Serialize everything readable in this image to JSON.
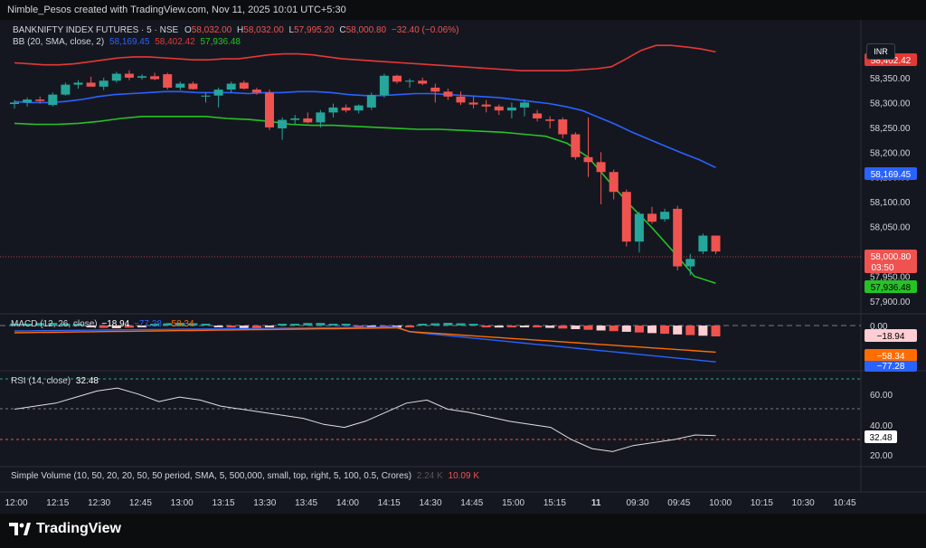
{
  "top_caption": "Nimble_Pesos created with TradingView.com, Nov 11, 2025 10:01 UTC+5:30",
  "currency_button": "INR",
  "symbol": {
    "title": "BANKNIFTY INDEX FUTURES · 5 · NSE",
    "o_label": "O",
    "open": "58,032.00",
    "h_label": "H",
    "high": "58,032.00",
    "l_label": "L",
    "low": "57,995.20",
    "c_label": "C",
    "close": "58,000.80",
    "change": "−32.40 (−0.06%)"
  },
  "bb": {
    "label": "BB (20, SMA, close, 2)",
    "basis": "58,169.45",
    "upper": "58,402.42",
    "lower": "57,936.48"
  },
  "macd": {
    "label": "MACD (12, 26, close)",
    "hist": "−18.94",
    "v2": "−77.28",
    "v3": "−58.34"
  },
  "rsi": {
    "label": "RSI (14, close)",
    "value": "32.48"
  },
  "volume": {
    "label": "Simple Volume (10, 50, 20, 20, 50, 50 period, SMA, 5, 500,000, small, top, right, 5, 100, 0.5, Crores)",
    "v1": "2.24 K",
    "v2": "10.09 K"
  },
  "price_axis": [
    "58,350.00",
    "58,300.00",
    "58,250.00",
    "58,200.00",
    "58,150.00",
    "58,100.00",
    "58,050.00",
    "57,950.00",
    "57,900.00"
  ],
  "price_badges": {
    "upper": "58,402.42",
    "basis": "58,169.45",
    "close": "58,000.80",
    "countdown": "03:50",
    "lower": "57,936.48"
  },
  "macd_axis": {
    "zero": "0.00",
    "hist": "−18.94",
    "signal": "−58.34",
    "macd": "−77.28"
  },
  "rsi_axis": {
    "top": "60.00",
    "mid": "40.00",
    "bottom": "20.00",
    "current": "32.48"
  },
  "time_axis": [
    "12:00",
    "12:15",
    "12:30",
    "12:45",
    "13:00",
    "13:15",
    "13:30",
    "13:45",
    "14:00",
    "14:15",
    "14:30",
    "14:45",
    "15:00",
    "15:15",
    "11",
    "09:30",
    "09:45",
    "10:00",
    "10:15",
    "10:30",
    "10:45"
  ],
  "brand": "TradingView",
  "colors": {
    "up": "#26a69a",
    "down": "#ef5350",
    "bb_upper": "#e53935",
    "bb_basis": "#2962ff",
    "bb_lower": "#26c226",
    "macd": "#2962ff",
    "signal": "#ff6d00",
    "rsi": "#e0e0e0"
  },
  "chart_data": {
    "type": "candlestick",
    "interval": "5",
    "y_range": [
      57880,
      58430
    ],
    "candles": [
      [
        58297,
        58305,
        58288,
        58300
      ],
      [
        58300,
        58310,
        58292,
        58306
      ],
      [
        58306,
        58312,
        58298,
        58303
      ],
      [
        58295,
        58320,
        58292,
        58316
      ],
      [
        58316,
        58340,
        58314,
        58336
      ],
      [
        58336,
        58345,
        58328,
        58340
      ],
      [
        58340,
        58352,
        58333,
        58332
      ],
      [
        58332,
        58350,
        58325,
        58344
      ],
      [
        58344,
        58362,
        58340,
        58358
      ],
      [
        58358,
        58365,
        58345,
        58350
      ],
      [
        58350,
        58357,
        58346,
        58353
      ],
      [
        58353,
        58360,
        58345,
        58347
      ],
      [
        58357,
        58360,
        58326,
        58330
      ],
      [
        58330,
        58342,
        58325,
        58338
      ],
      [
        58338,
        58342,
        58326,
        58327
      ],
      [
        58312,
        58320,
        58300,
        58314
      ],
      [
        58314,
        58330,
        58290,
        58326
      ],
      [
        58326,
        58342,
        58320,
        58338
      ],
      [
        58340,
        58344,
        58326,
        58328
      ],
      [
        58326,
        58330,
        58316,
        58320
      ],
      [
        58320,
        58326,
        58245,
        58250
      ],
      [
        58248,
        58270,
        58225,
        58265
      ],
      [
        58265,
        58275,
        58255,
        58268
      ],
      [
        58268,
        58280,
        58258,
        58260
      ],
      [
        58260,
        58285,
        58250,
        58280
      ],
      [
        58280,
        58298,
        58270,
        58290
      ],
      [
        58290,
        58296,
        58280,
        58284
      ],
      [
        58284,
        58296,
        58278,
        58294
      ],
      [
        58290,
        58320,
        58285,
        58315
      ],
      [
        58315,
        58358,
        58310,
        58354
      ],
      [
        58354,
        58356,
        58338,
        58342
      ],
      [
        58342,
        58348,
        58330,
        58344
      ],
      [
        58344,
        58350,
        58335,
        58338
      ],
      [
        58330,
        58338,
        58300,
        58322
      ],
      [
        58322,
        58328,
        58305,
        58312
      ],
      [
        58312,
        58322,
        58295,
        58300
      ],
      [
        58300,
        58312,
        58288,
        58296
      ],
      [
        58296,
        58305,
        58280,
        58292
      ],
      [
        58292,
        58296,
        58275,
        58284
      ],
      [
        58284,
        58300,
        58268,
        58290
      ],
      [
        58290,
        58306,
        58272,
        58300
      ],
      [
        58278,
        58285,
        58262,
        58268
      ],
      [
        58266,
        58272,
        58248,
        58263
      ],
      [
        58266,
        58270,
        58228,
        58236
      ],
      [
        58236,
        58240,
        58185,
        58190
      ],
      [
        58190,
        58270,
        58150,
        58180
      ],
      [
        58180,
        58200,
        58095,
        58160
      ],
      [
        58160,
        58165,
        58105,
        58120
      ],
      [
        58120,
        58125,
        58010,
        58020
      ],
      [
        58020,
        58080,
        57998,
        58076
      ],
      [
        58076,
        58090,
        58056,
        58060
      ],
      [
        58065,
        58086,
        58060,
        58080
      ],
      [
        58086,
        58092,
        57962,
        57970
      ],
      [
        57970,
        57995,
        57952,
        57985
      ],
      [
        58000,
        58036,
        57995,
        58032
      ],
      [
        58032,
        58032,
        57995,
        58000
      ]
    ],
    "bb_upper": [
      58380,
      58378,
      58376,
      58376,
      58378,
      58382,
      58386,
      58390,
      58392,
      58392,
      58390,
      58388,
      58386,
      58386,
      58388,
      58388,
      58392,
      58396,
      58398,
      58398,
      58396,
      58392,
      58388,
      58386,
      58384,
      58382,
      58380,
      58378,
      58376,
      58374,
      58372,
      58370,
      58368,
      58366,
      58364,
      58364,
      58364,
      58364,
      58366,
      58368,
      58372,
      58388,
      58405,
      58415,
      58415,
      58412,
      58408,
      58402
    ],
    "bb_basis": [
      58302,
      58300,
      58300,
      58302,
      58306,
      58312,
      58316,
      58318,
      58320,
      58322,
      58322,
      58320,
      58320,
      58320,
      58318,
      58320,
      58320,
      58322,
      58322,
      58320,
      58316,
      58314,
      58314,
      58316,
      58318,
      58318,
      58316,
      58314,
      58312,
      58310,
      58306,
      58302,
      58298,
      58292,
      58284,
      58270,
      58256,
      58240,
      58226,
      58212,
      58198,
      58185,
      58169
    ],
    "bb_lower": [
      58258,
      58256,
      58256,
      58258,
      58262,
      58268,
      58272,
      58272,
      58272,
      58272,
      58268,
      58266,
      58262,
      58256,
      58254,
      58254,
      58252,
      58250,
      58248,
      58246,
      58246,
      58244,
      58242,
      58240,
      58236,
      58232,
      58218,
      58190,
      58140,
      58092,
      58048,
      58000,
      57950,
      57936
    ],
    "rsi": [
      50,
      52,
      54,
      58,
      62,
      64,
      60,
      55,
      58,
      56,
      52,
      50,
      48,
      46,
      44,
      40,
      38,
      42,
      48,
      54,
      56,
      50,
      48,
      45,
      42,
      40,
      38,
      30,
      24,
      22,
      26,
      28,
      30,
      33,
      32.48
    ]
  }
}
